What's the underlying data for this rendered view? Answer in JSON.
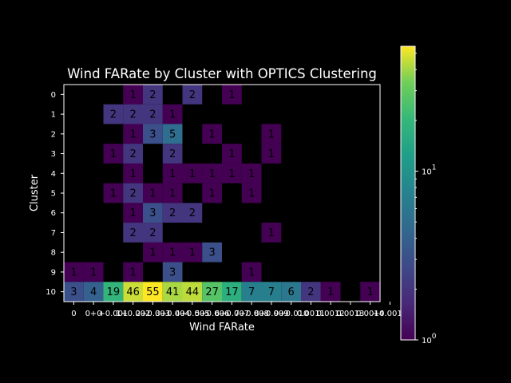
{
  "chart_data": {
    "type": "heatmap",
    "title": "Wind FARate by Cluster with OPTICS Clustering",
    "xlabel": "Wind FARate",
    "ylabel": "Cluster",
    "x_ticks": [
      "0",
      "0+0",
      "+0.001",
      "1+0.002",
      "2+0.003",
      "3+0.004",
      "4+0.005",
      "5+0.006",
      "6+0.007",
      "7+0.008",
      "8+0.009",
      "9+0.010",
      "0.0011",
      "0.0012",
      "0.0013",
      "0.0014",
      "+0.0015"
    ],
    "y_ticks": [
      "0",
      "1",
      "2",
      "3",
      "4",
      "5",
      "6",
      "7",
      "8",
      "9",
      "10"
    ],
    "values": [
      [
        null,
        null,
        null,
        1,
        2,
        null,
        2,
        null,
        1,
        null,
        null,
        null,
        null,
        null,
        null,
        null
      ],
      [
        null,
        null,
        2,
        2,
        2,
        1,
        null,
        null,
        null,
        null,
        null,
        null,
        null,
        null,
        null,
        null
      ],
      [
        null,
        null,
        null,
        1,
        3,
        5,
        null,
        1,
        null,
        null,
        1,
        null,
        null,
        null,
        null,
        null
      ],
      [
        null,
        null,
        1,
        2,
        null,
        2,
        null,
        null,
        1,
        null,
        1,
        null,
        null,
        null,
        null,
        null
      ],
      [
        null,
        null,
        null,
        1,
        null,
        1,
        1,
        1,
        1,
        1,
        null,
        null,
        null,
        null,
        null,
        null
      ],
      [
        null,
        null,
        1,
        2,
        1,
        1,
        null,
        1,
        null,
        1,
        null,
        null,
        null,
        null,
        null,
        null
      ],
      [
        null,
        null,
        null,
        1,
        3,
        2,
        2,
        null,
        null,
        null,
        null,
        null,
        null,
        null,
        null,
        null
      ],
      [
        null,
        null,
        null,
        2,
        2,
        null,
        null,
        null,
        null,
        null,
        1,
        null,
        null,
        null,
        null,
        null
      ],
      [
        null,
        null,
        null,
        null,
        1,
        1,
        1,
        3,
        null,
        null,
        null,
        null,
        null,
        null,
        null,
        null
      ],
      [
        1,
        1,
        null,
        1,
        null,
        3,
        null,
        null,
        null,
        1,
        null,
        null,
        null,
        null,
        null,
        null
      ],
      [
        3,
        4,
        19,
        46,
        55,
        41,
        44,
        27,
        17,
        7,
        7,
        6,
        2,
        1,
        null,
        1
      ]
    ],
    "colorbar": {
      "scale": "log",
      "range": [
        1,
        55
      ],
      "colormap": "viridis",
      "tick_labels": [
        "10^0",
        "10^1"
      ],
      "tick_values": [
        1,
        10
      ]
    },
    "grid": false,
    "background": "#000000",
    "missing_color": "#000000"
  }
}
